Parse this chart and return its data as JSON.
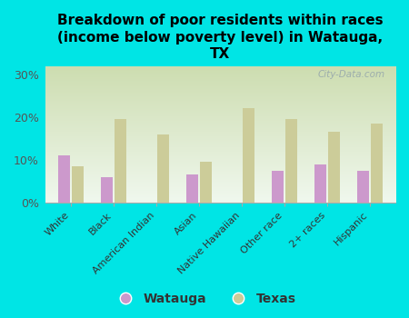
{
  "title": "Breakdown of poor residents within races\n(income below poverty level) in Watauga,\nTX",
  "categories": [
    "White",
    "Black",
    "American Indian",
    "Asian",
    "Native Hawaiian",
    "Other race",
    "2+ races",
    "Hispanic"
  ],
  "watauga_values": [
    11,
    6,
    0,
    6.5,
    0,
    7.5,
    9,
    7.5
  ],
  "texas_values": [
    8.5,
    19.5,
    16,
    9.5,
    22,
    19.5,
    16.5,
    18.5
  ],
  "watauga_color": "#cc99cc",
  "texas_color": "#cccc99",
  "background_color": "#00e5e5",
  "ylim": [
    0,
    32
  ],
  "yticks": [
    0,
    10,
    20,
    30
  ],
  "ytick_labels": [
    "0%",
    "10%",
    "20%",
    "30%"
  ],
  "watermark": "City-Data.com",
  "legend_watauga": "Watauga",
  "legend_texas": "Texas",
  "bar_width": 0.28,
  "title_fontsize": 11
}
